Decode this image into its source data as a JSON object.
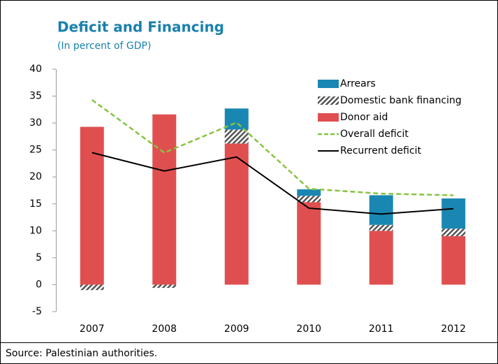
{
  "chart_data": {
    "type": "bar",
    "title": "Deficit and Financing",
    "subtitle": "(In percent of GDP)",
    "source": "Source: Palestinian authorities.",
    "categories": [
      "2007",
      "2008",
      "2009",
      "2010",
      "2011",
      "2012"
    ],
    "ylim": [
      -5,
      40
    ],
    "yticks": [
      -5,
      0,
      5,
      10,
      15,
      20,
      25,
      30,
      35,
      40
    ],
    "grid": false,
    "legend": "upper-right",
    "stacked": true,
    "series": [
      {
        "name": "Arrears",
        "type": "bar",
        "color": "#1a87b3",
        "values": [
          0,
          0,
          3.9,
          1.2,
          5.5,
          5.6
        ]
      },
      {
        "name": "Domestic bank financing",
        "type": "bar",
        "color": "#555555",
        "pattern": "hatch",
        "values": [
          -1.0,
          -0.6,
          2.6,
          1.2,
          1.1,
          1.4
        ]
      },
      {
        "name": "Donor aid",
        "type": "bar",
        "color": "#e04f4f",
        "values": [
          29.3,
          31.6,
          26.2,
          15.3,
          10.0,
          9.0
        ]
      },
      {
        "name": "Overall deficit",
        "type": "line",
        "dash": true,
        "color": "#86c440",
        "values": [
          34.3,
          24.5,
          30.1,
          17.8,
          16.9,
          16.6
        ]
      },
      {
        "name": "Recurrent deficit",
        "type": "line",
        "dash": false,
        "color": "#000000",
        "values": [
          24.5,
          21.1,
          23.7,
          14.2,
          13.1,
          14.1
        ]
      }
    ]
  }
}
